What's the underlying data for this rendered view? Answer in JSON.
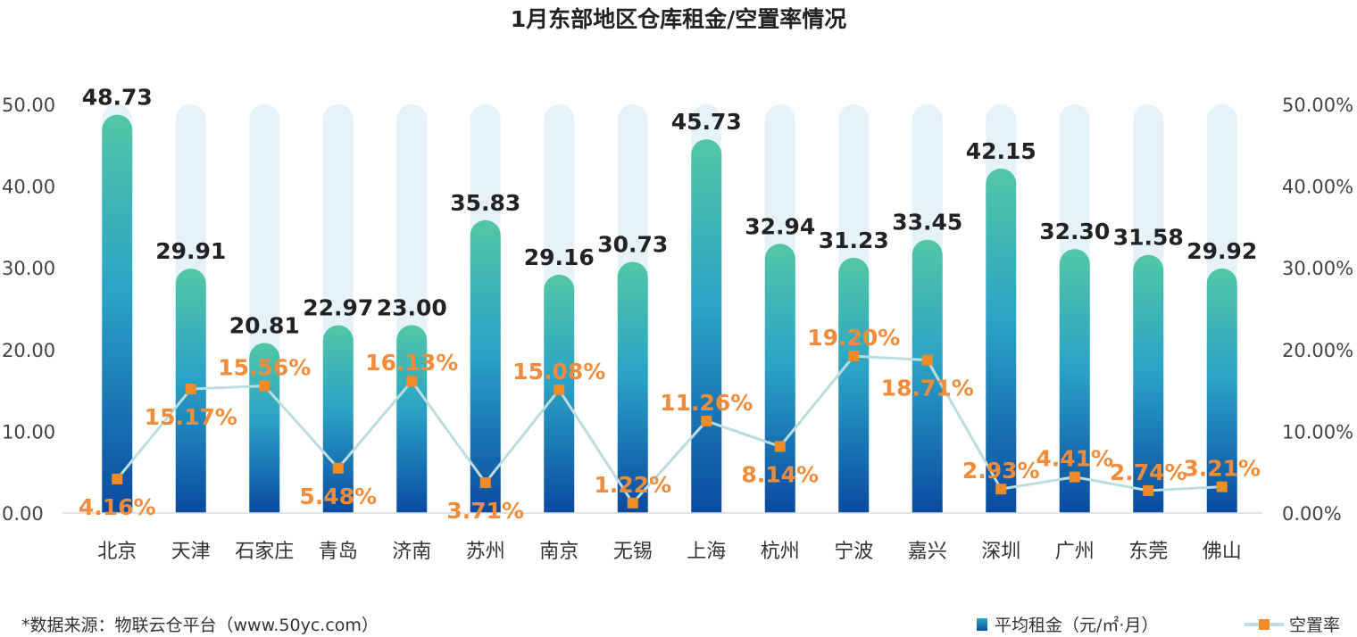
{
  "title": "1月东部地区仓库租金/空置率情况",
  "source_note": "*数据来源：物联云仓平台（www.50yc.com）",
  "colors": {
    "bar_top": "#52c7a6",
    "bar_mid": "#2aa3c6",
    "bar_bottom": "#0a4aa0",
    "bar_background": "#e6f2f9",
    "line": "#bcdde0",
    "marker": "#f08c28",
    "vacancy_label": "#f08c3c"
  },
  "chart_data": {
    "type": "bar",
    "title": "1月东部地区仓库租金/空置率情况",
    "categories": [
      "北京",
      "天津",
      "石家庄",
      "青岛",
      "济南",
      "苏州",
      "南京",
      "无锡",
      "上海",
      "杭州",
      "宁波",
      "嘉兴",
      "深圳",
      "广州",
      "东莞",
      "佛山"
    ],
    "series": [
      {
        "name": "平均租金（元/㎡·月）",
        "type": "bar",
        "axis": "left",
        "values": [
          48.73,
          29.91,
          20.81,
          22.97,
          23.0,
          35.83,
          29.16,
          30.73,
          45.73,
          32.94,
          31.23,
          33.45,
          42.15,
          32.3,
          31.58,
          29.92
        ],
        "labels": [
          "48.73",
          "29.91",
          "20.81",
          "22.97",
          "23.00",
          "35.83",
          "29.16",
          "30.73",
          "45.73",
          "32.94",
          "31.23",
          "33.45",
          "42.15",
          "32.30",
          "31.58",
          "29.92"
        ]
      },
      {
        "name": "空置率",
        "type": "line",
        "axis": "right",
        "values": [
          4.16,
          15.17,
          15.56,
          5.48,
          16.13,
          3.71,
          15.08,
          1.22,
          11.26,
          8.14,
          19.2,
          18.71,
          2.93,
          4.41,
          2.74,
          3.21
        ],
        "labels": [
          "4.16%",
          "15.17%",
          "15.56%",
          "5.48%",
          "16.13%",
          "3.71%",
          "15.08%",
          "1.22%",
          "11.26%",
          "8.14%",
          "19.20%",
          "18.71%",
          "2.93%",
          "4.41%",
          "2.74%",
          "3.21%"
        ]
      }
    ],
    "background_bar_value": 50,
    "y_left": {
      "min": 0,
      "max": 50,
      "ticks": [
        "0.00",
        "10.00",
        "20.00",
        "30.00",
        "40.00",
        "50.00"
      ]
    },
    "y_right": {
      "min": 0,
      "max": 50,
      "ticks": [
        "0.00%",
        "10.00%",
        "20.00%",
        "30.00%",
        "40.00%",
        "50.00%"
      ]
    },
    "grid": false,
    "legend_position": "bottom-right"
  }
}
